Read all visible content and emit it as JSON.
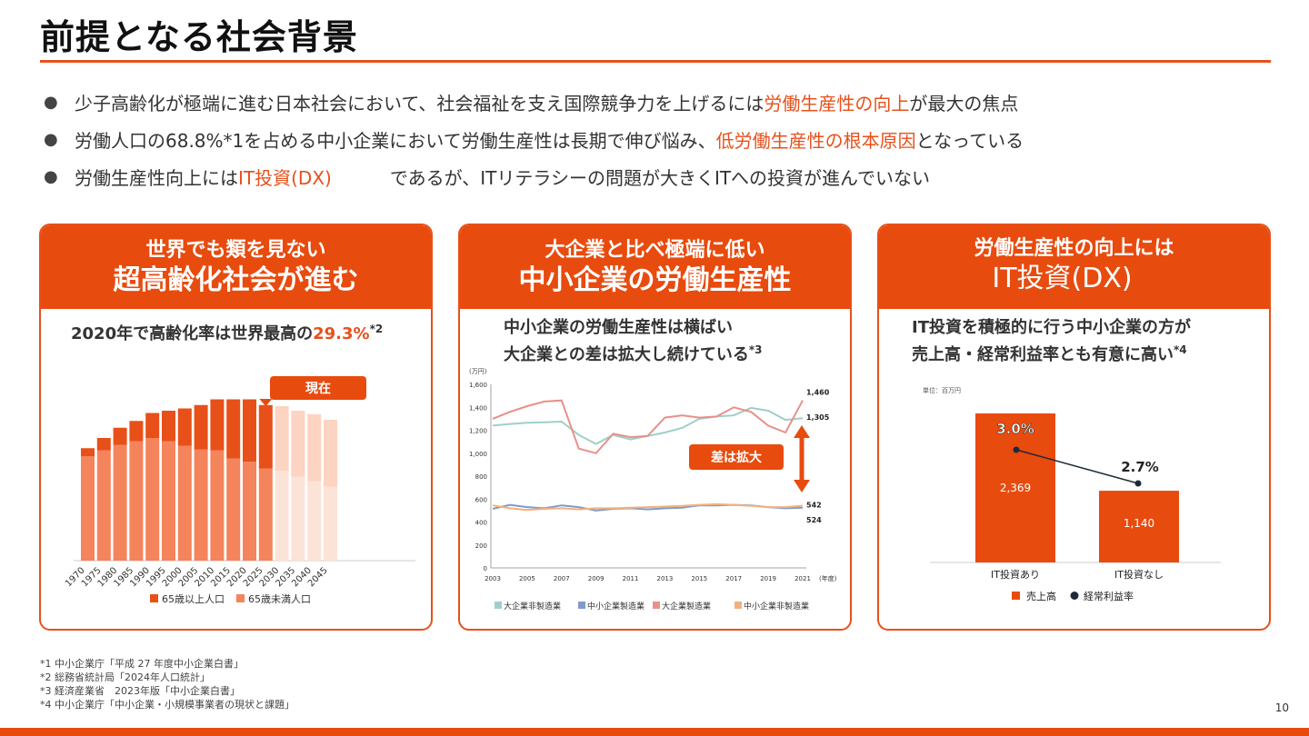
{
  "title": "前提となる社会背景",
  "bullets": [
    {
      "pre": "少子高齢化が極端に進む日本社会において、社会福祉を支え国際競争力を上げるには",
      "hl": "労働生産性の向上",
      "post": "が最大の焦点"
    },
    {
      "pre": "労働人口の68.8%*1を占める中小企業において労働生産性は長期で伸び悩み、",
      "hl": "低労働生産性の根本原因",
      "post": "となっている"
    },
    {
      "pre": "労働生産性向上には",
      "hl": "IT投資(DX)",
      "post": "であるが、ITリテラシーの問題が大きくITへの投資が進んでいない"
    }
  ],
  "card1": {
    "sub": "世界でも類を見ない",
    "main": "超高齢化社会が進む",
    "text_pre": "2020年で高齢化率は世界最高の",
    "text_hl": "29.3%",
    "text_sup": "*2",
    "callout": "現在",
    "legend": [
      "65歳以上人口",
      "65歳未満人口"
    ]
  },
  "card2": {
    "sub": "大企業と比べ極端に低い",
    "main": "中小企業の労働生産性",
    "text_line1": "中小企業の労働生産性は横ばい",
    "text_line2": "大企業との差は拡大し続けている",
    "text_sup": "*3",
    "callout": "差は拡大"
  },
  "card3": {
    "sub": "労働生産性の向上には",
    "main": "IT投資(DX)",
    "text_line1": "IT投資を積極的に行う中小企業の方が",
    "text_line2": "売上高・経常利益率とも有意に高い",
    "text_sup": "*4"
  },
  "chart_data": [
    {
      "type": "bar",
      "categories": [
        "1970",
        "1975",
        "1980",
        "1985",
        "1990",
        "1995",
        "2000",
        "2005",
        "2010",
        "2015",
        "2020",
        "2025",
        "2030",
        "2035",
        "2040",
        "2045"
      ],
      "series": [
        {
          "name": "65歳以上人口",
          "values": [
            7,
            11,
            15,
            18,
            22,
            27,
            33,
            39,
            45,
            52,
            55,
            56,
            57,
            58,
            59,
            59
          ],
          "color": "#E8501A"
        },
        {
          "name": "65歳未満人口",
          "values": [
            92,
            97,
            102,
            105,
            108,
            105,
            101,
            98,
            97,
            90,
            87,
            81,
            79,
            74,
            70,
            65
          ],
          "color": "#F4845C"
        }
      ],
      "projected_from": "2030",
      "ylim": [
        0,
        160
      ],
      "legend": "bottom"
    },
    {
      "type": "line",
      "unit": "(万円)",
      "x_unit": "(年度)",
      "x": [
        2003,
        2004,
        2005,
        2006,
        2007,
        2008,
        2009,
        2010,
        2011,
        2012,
        2013,
        2014,
        2015,
        2016,
        2017,
        2018,
        2019,
        2020,
        2021
      ],
      "x_ticks": [
        2003,
        2005,
        2007,
        2009,
        2011,
        2013,
        2015,
        2017,
        2019,
        2021
      ],
      "y_ticks": [
        0,
        200,
        400,
        600,
        800,
        1000,
        1200,
        1400,
        1600
      ],
      "ylim": [
        0,
        1600
      ],
      "series": [
        {
          "name": "大企業非製造業",
          "color": "#9FCFC8",
          "values": [
            1240,
            1255,
            1265,
            1270,
            1275,
            1160,
            1080,
            1160,
            1120,
            1150,
            1180,
            1220,
            1300,
            1320,
            1330,
            1395,
            1370,
            1290,
            1305
          ]
        },
        {
          "name": "中小企業製造業",
          "color": "#7F9CC8",
          "values": [
            515,
            550,
            530,
            520,
            545,
            530,
            500,
            515,
            520,
            510,
            520,
            525,
            545,
            545,
            550,
            545,
            530,
            520,
            524
          ]
        },
        {
          "name": "大企業製造業",
          "color": "#E8908A",
          "values": [
            1300,
            1360,
            1410,
            1450,
            1460,
            1040,
            1000,
            1170,
            1140,
            1150,
            1310,
            1330,
            1310,
            1320,
            1400,
            1360,
            1240,
            1180,
            1460
          ]
        },
        {
          "name": "中小企業非製造業",
          "color": "#F4B07E",
          "values": [
            545,
            520,
            505,
            515,
            520,
            510,
            520,
            520,
            525,
            530,
            535,
            540,
            550,
            555,
            550,
            540,
            530,
            530,
            542
          ]
        }
      ],
      "end_labels": [
        "1,460",
        "1,305",
        "542",
        "524"
      ],
      "legend": "bottom"
    },
    {
      "type": "bar",
      "unit": "単位：百万円",
      "categories": [
        "IT投資あり",
        "IT投資なし"
      ],
      "series": [
        {
          "name": "売上高",
          "values": [
            2369,
            1140
          ],
          "labels": [
            "2,369",
            "1,140"
          ],
          "color": "#E84B0E"
        },
        {
          "name": "経常利益率",
          "values": [
            3.0,
            2.7
          ],
          "labels": [
            "3.0%",
            "2.7%"
          ],
          "color": "#1E2A3A"
        }
      ],
      "legend": "bottom"
    }
  ],
  "footnotes": [
    "*1 中小企業庁「平成 27 年度中小企業白書」",
    "*2 総務省統計局「2024年人口統計」",
    "*3 経済産業省　2023年版「中小企業白書」",
    "*4 中小企業庁「中小企業・小規模事業者の現状と課題」"
  ],
  "page_number": "10"
}
